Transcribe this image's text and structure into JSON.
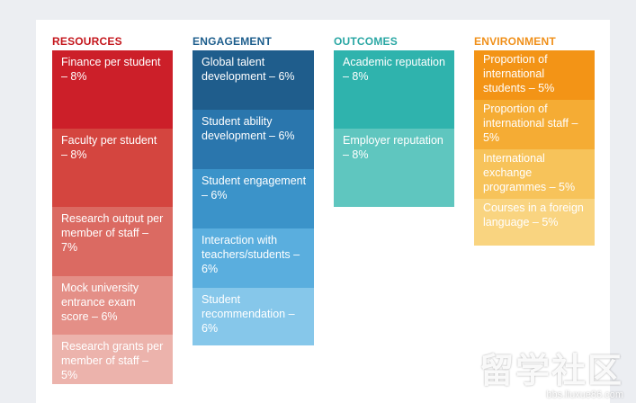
{
  "columns": [
    {
      "title": "RESOURCES",
      "title_color": "#c4161c",
      "items": [
        {
          "label": "Finance per student – 8%",
          "color": "#cc1f29"
        },
        {
          "label": "Faculty per student – 8%",
          "color": "#d4453f"
        },
        {
          "label": "Research output per member of staff – 7%",
          "color": "#db6a62"
        },
        {
          "label": "Mock university entrance exam score – 6%",
          "color": "#e48f87"
        },
        {
          "label": "Research grants per member of staff – 5%",
          "color": "#ecb3ac"
        }
      ]
    },
    {
      "title": "ENGAGEMENT",
      "title_color": "#1c5d8c",
      "items": [
        {
          "label": "Global talent development – 6%",
          "color": "#1f5d8c"
        },
        {
          "label": "Student ability development – 6%",
          "color": "#2a76ad"
        },
        {
          "label": "Student engagement – 6%",
          "color": "#3b93c9"
        },
        {
          "label": "Interaction with teachers/students – 6%",
          "color": "#5aaede"
        },
        {
          "label": "Student recommendation – 6%",
          "color": "#86c7ea"
        }
      ]
    },
    {
      "title": "OUTCOMES",
      "title_color": "#2aa7a4",
      "items": [
        {
          "label": "Academic reputation – 8%",
          "color": "#2fb3ad"
        },
        {
          "label": "Employer reputation – 8%",
          "color": "#5fc6bf"
        }
      ]
    },
    {
      "title": "ENVIRONMENT",
      "title_color": "#f0901a",
      "items": [
        {
          "label": "Proportion of international students – 5%",
          "color": "#f39416"
        },
        {
          "label": "Proportion of international staff – 5%",
          "color": "#f5ac34"
        },
        {
          "label": "International exchange programmes – 5%",
          "color": "#f7c35a"
        },
        {
          "label": "Courses in a foreign language – 5%",
          "color": "#f9d480"
        }
      ]
    }
  ],
  "watermark": {
    "text": "留学社区",
    "url": "bbs.liuxue86.com"
  }
}
